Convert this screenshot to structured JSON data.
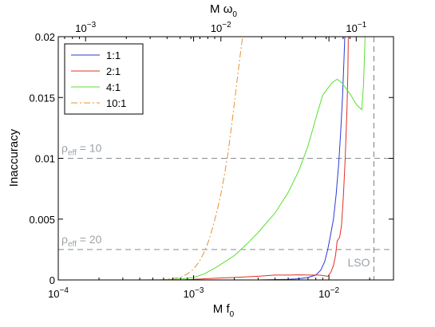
{
  "chart_data": {
    "type": "line",
    "xscale": "log",
    "xlim": [
      0.0001,
      0.03
    ],
    "ylim": [
      0,
      0.02
    ],
    "xlabel": {
      "main": "M f",
      "sub": "0"
    },
    "ylabel": "Inaccuracy",
    "top_xlabel": {
      "main": "M ω",
      "sub": "0"
    },
    "x_ticks": [
      {
        "value": 0.0001,
        "base": "10",
        "exp": "−4"
      },
      {
        "value": 0.001,
        "base": "10",
        "exp": "−3"
      },
      {
        "value": 0.01,
        "base": "10",
        "exp": "−2"
      }
    ],
    "top_x_ticks": [
      {
        "value": 0.001,
        "base": "10",
        "exp": "−3"
      },
      {
        "value": 0.01,
        "base": "10",
        "exp": "−2"
      },
      {
        "value": 0.1,
        "base": "10",
        "exp": "−1"
      }
    ],
    "y_ticks": [
      {
        "value": 0,
        "label": "0"
      },
      {
        "value": 0.005,
        "label": "0.005"
      },
      {
        "value": 0.01,
        "label": "0.01"
      },
      {
        "value": 0.015,
        "label": "0.015"
      },
      {
        "value": 0.02,
        "label": "0.02"
      }
    ],
    "legend_position": "top-left",
    "series": [
      {
        "name": "1:1",
        "color": "#2a3bd8",
        "dash": "solid",
        "points": [
          [
            0.003,
            0.0
          ],
          [
            0.005,
            5e-05
          ],
          [
            0.006,
            0.0001
          ],
          [
            0.007,
            0.0002
          ],
          [
            0.008,
            0.0004
          ],
          [
            0.0087,
            0.0008
          ],
          [
            0.0093,
            0.0015
          ],
          [
            0.0098,
            0.0025
          ],
          [
            0.0102,
            0.0035
          ],
          [
            0.0108,
            0.005
          ],
          [
            0.0113,
            0.007
          ],
          [
            0.0118,
            0.0095
          ],
          [
            0.0122,
            0.012
          ],
          [
            0.0126,
            0.015
          ],
          [
            0.0129,
            0.018
          ],
          [
            0.0131,
            0.02
          ]
        ]
      },
      {
        "name": "2:1",
        "color": "#e03020",
        "dash": "solid",
        "points": [
          [
            0.0008,
            0.0
          ],
          [
            0.001,
            5e-05
          ],
          [
            0.0015,
            0.00015
          ],
          [
            0.002,
            0.0002
          ],
          [
            0.003,
            0.0003
          ],
          [
            0.004,
            0.0004
          ],
          [
            0.005,
            0.0004
          ],
          [
            0.006,
            0.00042
          ],
          [
            0.007,
            0.0004
          ],
          [
            0.0078,
            0.0004
          ],
          [
            0.0085,
            0.0004
          ],
          [
            0.0092,
            0.00035
          ],
          [
            0.0098,
            0.0003
          ],
          [
            0.0103,
            0.0006
          ],
          [
            0.0108,
            0.0012
          ],
          [
            0.0112,
            0.002
          ],
          [
            0.0115,
            0.0032
          ],
          [
            0.012,
            0.0035
          ],
          [
            0.0124,
            0.0045
          ],
          [
            0.0128,
            0.007
          ],
          [
            0.0132,
            0.01
          ],
          [
            0.0136,
            0.014
          ],
          [
            0.0138,
            0.017
          ],
          [
            0.0139,
            0.02
          ]
        ]
      },
      {
        "name": "4:1",
        "color": "#58e030",
        "dash": "solid",
        "points": [
          [
            0.0004,
            0.0
          ],
          [
            0.0006,
            2e-05
          ],
          [
            0.0008,
            8e-05
          ],
          [
            0.001,
            0.0002
          ],
          [
            0.0012,
            0.0005
          ],
          [
            0.0015,
            0.0011
          ],
          [
            0.002,
            0.002
          ],
          [
            0.0025,
            0.003
          ],
          [
            0.003,
            0.0039
          ],
          [
            0.004,
            0.0055
          ],
          [
            0.005,
            0.0072
          ],
          [
            0.006,
            0.009
          ],
          [
            0.007,
            0.011
          ],
          [
            0.008,
            0.0133
          ],
          [
            0.009,
            0.0152
          ],
          [
            0.0105,
            0.0162
          ],
          [
            0.0115,
            0.0165
          ],
          [
            0.0125,
            0.0162
          ],
          [
            0.0145,
            0.0152
          ],
          [
            0.016,
            0.0144
          ],
          [
            0.0175,
            0.014
          ],
          [
            0.018,
            0.016
          ],
          [
            0.0185,
            0.02
          ]
        ]
      },
      {
        "name": "10:1",
        "color": "#e89030",
        "dash": "dashdot",
        "points": [
          [
            0.00045,
            0.0
          ],
          [
            0.0006,
            2e-05
          ],
          [
            0.0008,
            0.0002
          ],
          [
            0.0009,
            0.0005
          ],
          [
            0.001,
            0.0009
          ],
          [
            0.0011,
            0.0015
          ],
          [
            0.0012,
            0.0023
          ],
          [
            0.0013,
            0.0033
          ],
          [
            0.0014,
            0.0045
          ],
          [
            0.0015,
            0.0058
          ],
          [
            0.0016,
            0.0072
          ],
          [
            0.0017,
            0.0088
          ],
          [
            0.0018,
            0.0105
          ],
          [
            0.0019,
            0.0125
          ],
          [
            0.002,
            0.0145
          ],
          [
            0.0021,
            0.0165
          ],
          [
            0.0022,
            0.0183
          ],
          [
            0.0023,
            0.02
          ]
        ]
      }
    ],
    "reference_lines": [
      {
        "type": "h",
        "value": 0.01,
        "label": "ρ",
        "sub": "eff",
        "suffix": " = 10"
      },
      {
        "type": "h",
        "value": 0.0025,
        "label": "ρ",
        "sub": "eff",
        "suffix": " = 20"
      },
      {
        "type": "v",
        "value": 0.0215,
        "label": "LSO"
      }
    ]
  }
}
